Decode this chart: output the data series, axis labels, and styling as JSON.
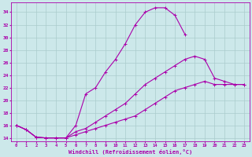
{
  "xlabel": "Windchill (Refroidissement éolien,°C)",
  "xlim": [
    -0.5,
    23.5
  ],
  "ylim": [
    13.5,
    35.5
  ],
  "yticks": [
    14,
    16,
    18,
    20,
    22,
    24,
    26,
    28,
    30,
    32,
    34
  ],
  "xticks": [
    0,
    1,
    2,
    3,
    4,
    5,
    6,
    7,
    8,
    9,
    10,
    11,
    12,
    13,
    14,
    15,
    16,
    17,
    18,
    19,
    20,
    21,
    22,
    23
  ],
  "background_color": "#cce8ea",
  "line_color": "#aa00aa",
  "grid_color": "#aacccc",
  "line1_x": [
    0,
    1,
    2,
    3,
    4,
    5,
    6,
    7,
    8,
    9,
    10,
    11,
    12,
    13,
    14,
    15,
    16,
    17
  ],
  "line1_y": [
    16,
    15.3,
    14.1,
    14.0,
    14.0,
    14.0,
    16.0,
    21.0,
    22.0,
    24.5,
    26.5,
    29.0,
    32.0,
    34.0,
    34.7,
    34.7,
    33.5,
    30.5
  ],
  "line2_x": [
    0,
    1,
    2,
    3,
    4,
    5,
    6,
    7,
    8,
    9,
    10,
    11,
    12,
    13,
    14,
    15,
    16,
    17,
    18,
    19,
    20,
    21,
    22,
    23
  ],
  "line2_y": [
    16,
    15.3,
    14.1,
    14.0,
    14.0,
    14.0,
    15.0,
    15.5,
    16.5,
    17.5,
    18.5,
    19.5,
    21.0,
    22.5,
    23.5,
    24.5,
    25.5,
    26.5,
    27.0,
    26.5,
    23.5,
    23.0,
    22.5,
    22.5
  ],
  "line3_x": [
    0,
    1,
    2,
    3,
    4,
    5,
    6,
    7,
    8,
    9,
    10,
    11,
    12,
    13,
    14,
    15,
    16,
    17,
    18,
    19,
    20,
    21,
    22,
    23
  ],
  "line3_y": [
    16,
    15.3,
    14.1,
    14.0,
    14.0,
    14.0,
    14.5,
    15.0,
    15.5,
    16.0,
    16.5,
    17.0,
    17.5,
    18.5,
    19.5,
    20.5,
    21.5,
    22.0,
    22.5,
    23.0,
    22.5,
    22.5,
    22.5,
    22.5
  ]
}
